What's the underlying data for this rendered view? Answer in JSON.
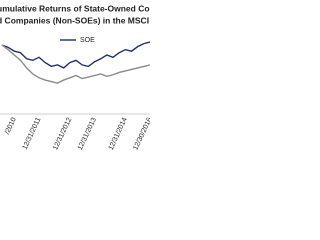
{
  "chart_data": {
    "type": "line",
    "title": "umulative Returns of State-Owned Companie",
    "subtitle": "d Companies (Non-SOEs) in the MSCI Emergin",
    "categories": [
      null,
      null,
      "/2010",
      null,
      null,
      null,
      "12/31/2011",
      null,
      null,
      null,
      null,
      "12/31/2012",
      null,
      null,
      null,
      "12/31/2013",
      null,
      null,
      null,
      null,
      "12/31/2014",
      null,
      null,
      null,
      "12/30/2016"
    ],
    "series": [
      {
        "name": "SOE",
        "color": "#1f2f6e",
        "values": [
          138,
          135,
          130,
          128,
          120,
          118,
          122,
          115,
          110,
          112,
          108,
          115,
          118,
          112,
          110,
          116,
          120,
          125,
          122,
          128,
          132,
          130,
          136,
          140,
          142
        ]
      },
      {
        "color": "#8a8a8a",
        "values": [
          138,
          132,
          125,
          118,
          108,
          100,
          95,
          92,
          90,
          88,
          92,
          95,
          98,
          94,
          96,
          98,
          100,
          97,
          99,
          102,
          104,
          106,
          108,
          110,
          112
        ]
      }
    ],
    "ylim": [
      50,
      150
    ]
  }
}
